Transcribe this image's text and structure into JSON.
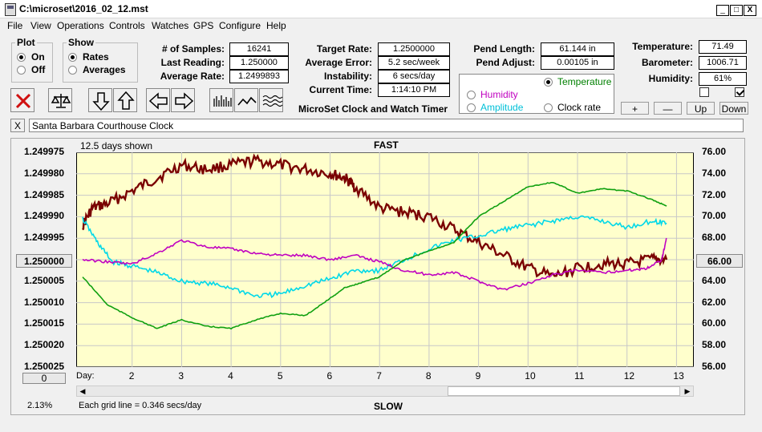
{
  "window": {
    "title": "C:\\microset\\2016_02_12.mst",
    "controls": [
      "_",
      "□",
      "X"
    ]
  },
  "menu": [
    "File",
    "View",
    "Operations",
    "Controls",
    "Watches",
    "GPS",
    "Configure",
    "Help"
  ],
  "plot_group": {
    "legend": "Plot",
    "options": [
      {
        "label": "On",
        "selected": true
      },
      {
        "label": "Off",
        "selected": false
      }
    ]
  },
  "show_group": {
    "legend": "Show",
    "options": [
      {
        "label": "Rates",
        "selected": true
      },
      {
        "label": "Averages",
        "selected": false
      }
    ]
  },
  "fields_left": [
    {
      "label": "# of Samples:",
      "value": "16241"
    },
    {
      "label": "Last Reading:",
      "value": "1.250000"
    },
    {
      "label": "Average Rate:",
      "value": "1.2499893"
    }
  ],
  "fields_mid": [
    {
      "label": "Target Rate:",
      "value": "1.2500000"
    },
    {
      "label": "Average Error:",
      "value": "5.2 sec/week"
    },
    {
      "label": "Instability:",
      "value": "6 secs/day"
    },
    {
      "label": "Current Time:",
      "value": "1:14:10 PM"
    }
  ],
  "app_caption": "MicroSet Clock and Watch Timer",
  "fields_pend": [
    {
      "label": "Pend Length:",
      "value": "61.144 in"
    },
    {
      "label": "Pend Adjust:",
      "value": "0.00105 in"
    }
  ],
  "aux_options": [
    {
      "label": "Temperature",
      "selected": true,
      "color": "#008000"
    },
    {
      "label": "Humidity",
      "selected": false,
      "color": "#c000c0"
    },
    {
      "label": "Amplitude",
      "selected": false,
      "color": "#00c8d8"
    },
    {
      "label": "Clock rate",
      "selected": false,
      "color": "#000000"
    }
  ],
  "fields_env": [
    {
      "label": "Temperature:",
      "value": "71.49"
    },
    {
      "label": "Barometer:",
      "value": "1006.71"
    },
    {
      "label": "Humidity:",
      "value": "61%"
    }
  ],
  "env_checkboxes": [
    false,
    true
  ],
  "scale_buttons": [
    "+",
    "—",
    "Up",
    "Down"
  ],
  "toolbar_icons": [
    "clear-icon",
    "balance-icon",
    "arrow-down-icon",
    "arrow-up-icon",
    "arrow-left-icon",
    "arrow-right-icon",
    "bars-icon",
    "line-icon",
    "waves-icon"
  ],
  "clock_name": "Santa Barbara Courthouse Clock",
  "clock_close": "X",
  "chart_data": {
    "type": "line",
    "top_label": "FAST",
    "bottom_label": "SLOW",
    "days_shown": "12.5 days shown",
    "grid_note": "Each grid line = 0.346 secs/day",
    "left_axis_ticks": [
      "1.249975",
      "1.249980",
      "1.249985",
      "1.249990",
      "1.249995",
      "1.250000",
      "1.250005",
      "1.250010",
      "1.250015",
      "1.250020",
      "1.250025"
    ],
    "right_axis_ticks": [
      "76.00",
      "74.00",
      "72.00",
      "70.00",
      "68.00",
      "66.00",
      "64.00",
      "62.00",
      "60.00",
      "58.00",
      "56.00"
    ],
    "x_label": "Day:",
    "x_ticks": [
      "2",
      "3",
      "4",
      "5",
      "6",
      "7",
      "8",
      "9",
      "10",
      "11",
      "12",
      "13"
    ],
    "left_value_box": "1.250000",
    "right_value_box": "66.00",
    "left_bottom_box": "0",
    "percent": "2.13%",
    "ylim_left": [
      1.249975,
      1.250025
    ],
    "ylim_right": [
      56,
      76
    ],
    "series": [
      {
        "name": "Clock rate",
        "color": "#7a0000",
        "x": [
          1.0,
          1.2,
          1.5,
          2.0,
          2.5,
          3.0,
          3.5,
          4.0,
          4.5,
          5.0,
          5.5,
          6.0,
          6.3,
          6.5,
          7.0,
          7.5,
          8.0,
          8.5,
          9.0,
          9.5,
          10.0,
          10.5,
          11.0,
          11.5,
          12.0,
          12.5,
          12.8
        ],
        "y": [
          1.249992,
          1.249988,
          1.249987,
          1.249984,
          1.249981,
          1.249978,
          1.249979,
          1.249978,
          1.249977,
          1.249978,
          1.249979,
          1.24998,
          1.249981,
          1.249983,
          1.249988,
          1.249989,
          1.24999,
          1.249993,
          1.249996,
          1.249999,
          1.250002,
          1.250004,
          1.250002,
          1.250001,
          1.250001,
          1.25,
          1.25
        ]
      },
      {
        "name": "Amplitude",
        "color": "#00d8e8",
        "x": [
          1.0,
          1.3,
          1.6,
          2.0,
          2.5,
          3.0,
          3.5,
          4.0,
          4.5,
          5.0,
          5.5,
          6.0,
          6.5,
          7.0,
          7.5,
          8.0,
          8.5,
          9.0,
          9.5,
          10.0,
          10.5,
          11.0,
          11.5,
          12.0,
          12.5,
          12.8
        ],
        "y": [
          69.8,
          67.6,
          65.8,
          65.4,
          64.8,
          64.0,
          63.8,
          63.4,
          62.6,
          62.8,
          63.6,
          64.2,
          65.0,
          65.0,
          66.0,
          67.0,
          67.8,
          68.2,
          68.8,
          69.2,
          69.6,
          70.0,
          69.6,
          69.0,
          69.6,
          69.4
        ]
      },
      {
        "name": "Humidity",
        "color": "#c000c0",
        "x": [
          1.0,
          1.5,
          2.0,
          2.5,
          3.0,
          3.5,
          4.0,
          4.5,
          5.0,
          5.5,
          6.0,
          6.5,
          7.0,
          7.5,
          8.0,
          8.5,
          9.0,
          9.5,
          10.0,
          10.5,
          11.0,
          11.5,
          12.0,
          12.4,
          12.7,
          12.8
        ],
        "y": [
          66.0,
          65.8,
          65.6,
          66.6,
          67.8,
          67.2,
          67.0,
          66.6,
          66.4,
          66.4,
          66.0,
          66.4,
          65.8,
          65.0,
          64.6,
          64.8,
          64.0,
          63.2,
          63.8,
          64.6,
          65.0,
          64.8,
          65.0,
          65.2,
          66.0,
          68.0
        ]
      },
      {
        "name": "Temperature",
        "color": "#10a010",
        "x": [
          1.0,
          1.5,
          2.0,
          2.5,
          3.0,
          3.5,
          4.0,
          4.5,
          5.0,
          5.5,
          6.0,
          6.3,
          6.6,
          7.0,
          7.5,
          8.0,
          8.5,
          9.0,
          9.5,
          10.0,
          10.5,
          11.0,
          11.5,
          12.0,
          12.5,
          12.8
        ],
        "y": [
          64.4,
          61.8,
          60.6,
          59.6,
          60.4,
          59.8,
          59.6,
          60.4,
          61.0,
          60.8,
          62.4,
          63.4,
          63.8,
          64.4,
          66.0,
          66.8,
          67.6,
          70.0,
          71.4,
          72.8,
          73.2,
          72.2,
          72.6,
          72.4,
          71.6,
          71.0
        ]
      }
    ]
  }
}
